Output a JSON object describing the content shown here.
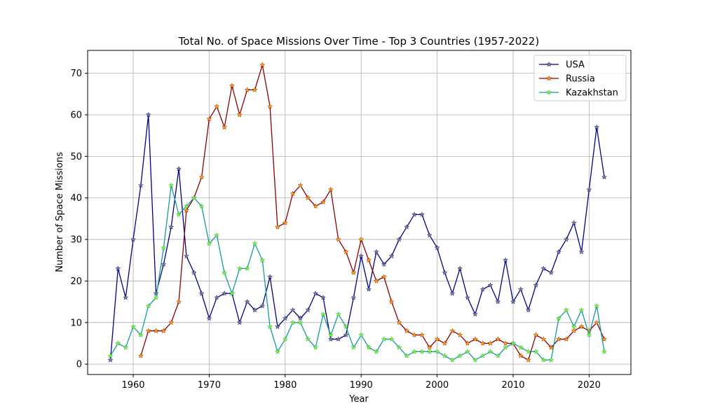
{
  "chart_data": {
    "type": "line",
    "title": "Total No. of Space Missions Over Time - Top 3 Countries (1957-2022)",
    "xlabel": "Year",
    "ylabel": "Number of Space Missions",
    "xlim": [
      1954,
      2025.5
    ],
    "ylim": [
      -2.5,
      75.5
    ],
    "xticks": [
      1960,
      1970,
      1980,
      1990,
      2000,
      2010,
      2020
    ],
    "yticks": [
      0,
      10,
      20,
      30,
      40,
      50,
      60,
      70
    ],
    "grid": true,
    "legend": "top-right",
    "marker": "star",
    "series": [
      {
        "name": "USA",
        "color": "#00008b",
        "marker_color": "#808080",
        "x": [
          1957,
          1958,
          1959,
          1960,
          1961,
          1962,
          1963,
          1964,
          1965,
          1966,
          1967,
          1968,
          1969,
          1970,
          1971,
          1972,
          1973,
          1974,
          1975,
          1976,
          1977,
          1978,
          1979,
          1980,
          1981,
          1982,
          1983,
          1984,
          1985,
          1986,
          1987,
          1988,
          1989,
          1990,
          1991,
          1992,
          1993,
          1994,
          1995,
          1996,
          1997,
          1998,
          1999,
          2000,
          2001,
          2002,
          2003,
          2004,
          2005,
          2006,
          2007,
          2008,
          2009,
          2010,
          2011,
          2012,
          2013,
          2014,
          2015,
          2016,
          2017,
          2018,
          2019,
          2020,
          2021,
          2022
        ],
        "values": [
          1,
          23,
          16,
          30,
          43,
          60,
          17,
          24,
          33,
          47,
          26,
          22,
          17,
          11,
          16,
          17,
          17,
          10,
          15,
          13,
          14,
          21,
          9,
          11,
          13,
          11,
          13,
          17,
          16,
          6,
          6,
          7,
          16,
          26,
          18,
          27,
          24,
          26,
          30,
          33,
          36,
          36,
          31,
          28,
          22,
          17,
          23,
          16,
          12,
          18,
          19,
          15,
          25,
          15,
          18,
          13,
          19,
          23,
          22,
          27,
          30,
          34,
          27,
          42,
          57,
          45
        ]
      },
      {
        "name": "Russia",
        "color": "#8b0000",
        "marker_color": "#ffa500",
        "x": [
          1961,
          1962,
          1963,
          1964,
          1965,
          1966,
          1967,
          1968,
          1969,
          1970,
          1971,
          1972,
          1973,
          1974,
          1975,
          1976,
          1977,
          1978,
          1979,
          1980,
          1981,
          1982,
          1983,
          1984,
          1985,
          1986,
          1987,
          1988,
          1989,
          1990,
          1991,
          1992,
          1993,
          1994,
          1995,
          1996,
          1997,
          1998,
          1999,
          2000,
          2001,
          2002,
          2003,
          2004,
          2005,
          2006,
          2007,
          2008,
          2009,
          2010,
          2011,
          2012,
          2013,
          2014,
          2015,
          2016,
          2017,
          2018,
          2019,
          2020,
          2021,
          2022
        ],
        "values": [
          2,
          8,
          8,
          8,
          10,
          15,
          37,
          40,
          45,
          59,
          62,
          57,
          67,
          60,
          66,
          66,
          72,
          62,
          33,
          34,
          41,
          43,
          40,
          38,
          39,
          42,
          30,
          27,
          22,
          30,
          25,
          20,
          21,
          15,
          10,
          8,
          7,
          7,
          4,
          6,
          5,
          8,
          7,
          5,
          6,
          5,
          5,
          6,
          5,
          5,
          2,
          1,
          7,
          6,
          4,
          6,
          6,
          8,
          9,
          8,
          10,
          6
        ]
      },
      {
        "name": "Kazakhstan",
        "color": "#139b9b",
        "marker_color": "#7cfc00",
        "x": [
          1957,
          1958,
          1959,
          1960,
          1961,
          1962,
          1963,
          1964,
          1965,
          1966,
          1967,
          1968,
          1969,
          1970,
          1971,
          1972,
          1973,
          1974,
          1975,
          1976,
          1977,
          1978,
          1979,
          1980,
          1981,
          1982,
          1983,
          1984,
          1985,
          1986,
          1987,
          1988,
          1989,
          1990,
          1991,
          1992,
          1993,
          1994,
          1995,
          1996,
          1997,
          1998,
          1999,
          2000,
          2001,
          2002,
          2003,
          2004,
          2005,
          2006,
          2007,
          2008,
          2009,
          2010,
          2011,
          2012,
          2013,
          2014,
          2015,
          2016,
          2017,
          2018,
          2019,
          2020,
          2021,
          2022
        ],
        "values": [
          2,
          5,
          4,
          9,
          7,
          14,
          16,
          28,
          43,
          36,
          38,
          40,
          38,
          29,
          31,
          22,
          17,
          23,
          23,
          29,
          25,
          9,
          3,
          6,
          10,
          10,
          6,
          4,
          12,
          7,
          12,
          9,
          4,
          7,
          4,
          3,
          6,
          6,
          4,
          2,
          3,
          3,
          3,
          3,
          2,
          1,
          2,
          3,
          1,
          2,
          3,
          2,
          4,
          5,
          4,
          3,
          3,
          1,
          1,
          11,
          13,
          9,
          13,
          7,
          14,
          3
        ]
      }
    ]
  }
}
